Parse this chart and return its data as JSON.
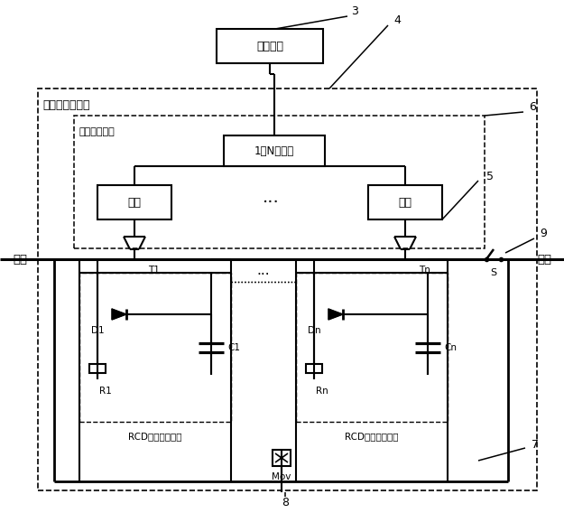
{
  "bg_color": "#ffffff",
  "fig_width": 6.25,
  "fig_height": 5.68,
  "labels": {
    "microcontroller": "微控制器",
    "transformer": "1：N变压器",
    "drive": "驱动",
    "dots": "···",
    "busbar_left": "母线",
    "busbar_right": "母线",
    "t1": "T1",
    "tn": "Tn",
    "d1": "D1",
    "dn": "Dn",
    "c1": "C1",
    "cn": "Cn",
    "r1": "R1",
    "rn": "Rn",
    "rcd1": "RCD缓冲均压电路",
    "rcdn": "RCD缓冲均压电路",
    "mov": "Mov",
    "s_label": "S",
    "outer_label": "高压电切换开关",
    "inner_label": "驱动控制电路",
    "num3": "3",
    "num4": "4",
    "num5": "5",
    "num6": "6",
    "num7": "7",
    "num8": "8",
    "num9": "9"
  }
}
